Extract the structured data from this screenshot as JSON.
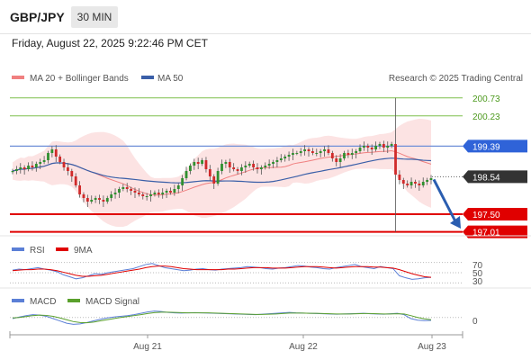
{
  "header": {
    "symbol": "GBP/JPY",
    "timeframe": "30 MIN",
    "datetime": "Friday, August 22, 2025 9:22:46 PM CET"
  },
  "colors": {
    "bollinger": "#f08080",
    "ma50": "#3a5fa8",
    "resistance_green": "#7fbf4d",
    "support_red": "#e00000",
    "current_price_bg": "#333333",
    "rsi": "#5b7fd6",
    "rsi_ma": "#e00000",
    "macd": "#5b7fd6",
    "macd_signal": "#5aa02c",
    "arrow": "#2a5db0"
  },
  "chart_data": [
    {
      "type": "candlestick",
      "panel": "price",
      "legend": [
        "MA 20 + Bollinger Bands",
        "MA 50"
      ],
      "legend_position": "top-left",
      "watermark": "Research © 2025 Trading Central",
      "x_ticks": [
        "Aug 21",
        "Aug 22",
        "Aug 23"
      ],
      "ylim": [
        197.0,
        201.0
      ],
      "levels": [
        {
          "value": 200.73,
          "label": "200.73",
          "kind": "resistance"
        },
        {
          "value": 200.23,
          "label": "200.23",
          "kind": "resistance"
        },
        {
          "value": 199.39,
          "label": "199.39",
          "kind": "pivot"
        },
        {
          "value": 198.54,
          "label": "198.54",
          "kind": "current"
        },
        {
          "value": 197.5,
          "label": "197.50",
          "kind": "support"
        },
        {
          "value": 197.01,
          "label": "197.01",
          "kind": "support"
        }
      ],
      "forecast_arrow": {
        "from": 198.54,
        "to": 197.05,
        "direction": "down"
      },
      "ohlc_close": [
        198.7,
        198.75,
        198.8,
        198.75,
        198.85,
        198.8,
        198.9,
        198.95,
        199.0,
        199.2,
        199.3,
        199.1,
        198.95,
        198.8,
        198.7,
        198.55,
        198.3,
        198.05,
        197.95,
        197.85,
        197.9,
        197.95,
        197.9,
        197.85,
        197.95,
        198.05,
        198.1,
        198.2,
        198.25,
        198.2,
        198.15,
        198.1,
        198.05,
        198.0,
        198.0,
        198.05,
        198.1,
        198.05,
        198.1,
        198.15,
        198.1,
        198.2,
        198.3,
        198.5,
        198.7,
        198.85,
        198.95,
        198.9,
        199.0,
        198.75,
        198.55,
        198.35,
        198.7,
        198.9,
        198.95,
        198.8,
        198.75,
        198.7,
        198.8,
        198.85,
        198.9,
        198.8,
        198.75,
        198.8,
        198.85,
        198.9,
        198.95,
        199.0,
        199.05,
        199.1,
        199.15,
        199.2,
        199.2,
        199.25,
        199.3,
        199.25,
        199.2,
        199.2,
        199.25,
        199.3,
        199.2,
        199.05,
        198.95,
        199.05,
        199.2,
        199.15,
        199.2,
        199.25,
        199.35,
        199.4,
        199.35,
        199.3,
        199.4,
        199.45,
        199.35,
        199.4,
        199.45,
        198.6,
        198.45,
        198.35,
        198.3,
        198.4,
        198.35,
        198.3,
        198.4,
        198.45,
        198.5
      ]
    },
    {
      "type": "line",
      "panel": "rsi",
      "legend": [
        "RSI",
        "9MA"
      ],
      "y_ticks": [
        70,
        50,
        30
      ],
      "ylim": [
        20,
        80
      ],
      "series": [
        {
          "name": "RSI",
          "values": [
            55,
            57,
            56,
            58,
            60,
            57,
            55,
            52,
            46,
            42,
            38,
            40,
            44,
            48,
            47,
            50,
            52,
            54,
            56,
            58,
            62,
            66,
            68,
            64,
            60,
            58,
            56,
            54,
            55,
            57,
            58,
            56,
            55,
            57,
            58,
            59,
            60,
            62,
            61,
            60,
            58,
            57,
            59,
            60,
            62,
            64,
            63,
            61,
            60,
            58,
            57,
            60,
            62,
            64,
            66,
            62,
            60,
            58,
            62,
            60,
            58,
            44,
            40,
            37,
            38,
            40,
            41
          ]
        },
        {
          "name": "9MA",
          "values": [
            54,
            55,
            56,
            56,
            57,
            57,
            56,
            54,
            51,
            48,
            45,
            43,
            43,
            44,
            45,
            47,
            49,
            51,
            53,
            55,
            57,
            60,
            62,
            63,
            63,
            62,
            60,
            58,
            57,
            56,
            56,
            56,
            56,
            56,
            57,
            57,
            58,
            59,
            60,
            60,
            60,
            59,
            59,
            59,
            60,
            61,
            62,
            62,
            62,
            61,
            60,
            59,
            60,
            61,
            62,
            62,
            62,
            61,
            61,
            60,
            59,
            56,
            52,
            48,
            45,
            42,
            41
          ]
        }
      ]
    },
    {
      "type": "line",
      "panel": "macd",
      "legend": [
        "MACD",
        "MACD Signal"
      ],
      "y_ticks": [
        0
      ],
      "ylim": [
        -0.6,
        0.5
      ],
      "series": [
        {
          "name": "MACD",
          "values": [
            -0.05,
            0.02,
            0.08,
            0.12,
            0.1,
            0.05,
            -0.05,
            -0.15,
            -0.25,
            -0.3,
            -0.28,
            -0.22,
            -0.15,
            -0.08,
            -0.02,
            0.02,
            0.05,
            0.08,
            0.12,
            0.18,
            0.24,
            0.28,
            0.26,
            0.22,
            0.2,
            0.19,
            0.2,
            0.21,
            0.2,
            0.19,
            0.18,
            0.17,
            0.16,
            0.15,
            0.14,
            0.13,
            0.12,
            0.14,
            0.16,
            0.18,
            0.2,
            0.22,
            0.2,
            0.19,
            0.18,
            0.17,
            0.16,
            0.15,
            0.14,
            0.15,
            0.16,
            0.17,
            0.18,
            0.16,
            0.15,
            0.14,
            0.16,
            0.18,
            0.12,
            -0.05,
            -0.12,
            -0.14,
            -0.13
          ]
        },
        {
          "name": "MACD Signal",
          "values": [
            -0.02,
            0.0,
            0.04,
            0.08,
            0.1,
            0.09,
            0.05,
            -0.02,
            -0.1,
            -0.18,
            -0.22,
            -0.23,
            -0.2,
            -0.15,
            -0.1,
            -0.05,
            0.0,
            0.04,
            0.08,
            0.12,
            0.17,
            0.21,
            0.23,
            0.23,
            0.22,
            0.21,
            0.2,
            0.2,
            0.2,
            0.2,
            0.19,
            0.18,
            0.17,
            0.16,
            0.15,
            0.14,
            0.13,
            0.13,
            0.14,
            0.15,
            0.17,
            0.19,
            0.19,
            0.19,
            0.18,
            0.18,
            0.17,
            0.16,
            0.15,
            0.15,
            0.15,
            0.16,
            0.17,
            0.17,
            0.16,
            0.15,
            0.15,
            0.16,
            0.15,
            0.08,
            0.0,
            -0.06,
            -0.1
          ]
        }
      ]
    }
  ]
}
